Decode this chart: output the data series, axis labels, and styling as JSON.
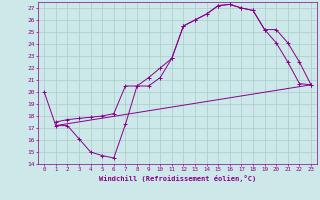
{
  "xlabel": "Windchill (Refroidissement éolien,°C)",
  "xlim": [
    -0.5,
    23.5
  ],
  "ylim": [
    14,
    27.5
  ],
  "xticks": [
    0,
    1,
    2,
    3,
    4,
    5,
    6,
    7,
    8,
    9,
    10,
    11,
    12,
    13,
    14,
    15,
    16,
    17,
    18,
    19,
    20,
    21,
    22,
    23
  ],
  "yticks": [
    14,
    15,
    16,
    17,
    18,
    19,
    20,
    21,
    22,
    23,
    24,
    25,
    26,
    27
  ],
  "bg_color": "#cce8e8",
  "line_color": "#8b008b",
  "grid_color": "#aacccc",
  "curve1_x": [
    0,
    1,
    2,
    3,
    4,
    5,
    6,
    7,
    8,
    9,
    10,
    11,
    12,
    13,
    14,
    15,
    16,
    17,
    18,
    19,
    20,
    21,
    22,
    23
  ],
  "curve1_y": [
    20.0,
    17.2,
    17.2,
    16.1,
    15.0,
    14.7,
    14.5,
    17.3,
    20.5,
    21.2,
    22.0,
    22.8,
    25.5,
    26.0,
    26.5,
    27.2,
    27.3,
    27.0,
    26.8,
    25.2,
    24.1,
    22.5,
    20.7,
    20.6
  ],
  "curve2_x": [
    1,
    2,
    3,
    4,
    5,
    6,
    7,
    8,
    9,
    10,
    11,
    12,
    13,
    14,
    15,
    16,
    17,
    18,
    19,
    20,
    21,
    22,
    23
  ],
  "curve2_y": [
    17.5,
    17.7,
    17.8,
    17.9,
    18.0,
    18.2,
    20.5,
    20.5,
    20.5,
    21.2,
    22.8,
    25.5,
    26.0,
    26.5,
    27.2,
    27.3,
    27.0,
    26.8,
    25.2,
    25.2,
    24.1,
    22.5,
    20.6
  ],
  "curve3_x": [
    1,
    23
  ],
  "curve3_y": [
    17.2,
    20.6
  ]
}
